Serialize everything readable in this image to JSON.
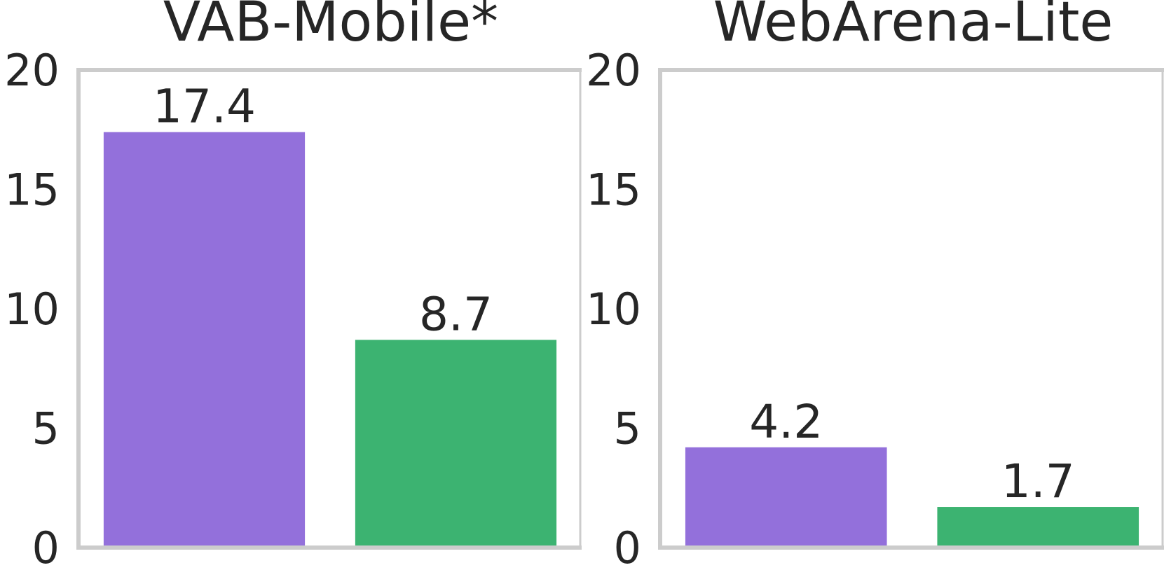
{
  "chart_data": [
    {
      "type": "bar",
      "title": "VAB-Mobile*",
      "categories": [
        "",
        ""
      ],
      "values": [
        17.4,
        8.7
      ],
      "data_labels": [
        "17.4",
        "8.7"
      ],
      "colors": [
        "#9370DB",
        "#3CB371"
      ],
      "ylim": [
        0,
        20
      ],
      "yticks": [
        0,
        5,
        10,
        15,
        20
      ],
      "ytick_labels": [
        "0",
        "5",
        "10",
        "15",
        "20"
      ],
      "grid": false,
      "xlabel": "",
      "ylabel": ""
    },
    {
      "type": "bar",
      "title": "WebArena-Lite",
      "categories": [
        "",
        ""
      ],
      "values": [
        4.2,
        1.7
      ],
      "data_labels": [
        "4.2",
        "1.7"
      ],
      "colors": [
        "#9370DB",
        "#3CB371"
      ],
      "ylim": [
        0,
        20
      ],
      "yticks": [
        0,
        5,
        10,
        15,
        20
      ],
      "ytick_labels": [
        "0",
        "5",
        "10",
        "15",
        "20"
      ],
      "grid": false,
      "xlabel": "",
      "ylabel": ""
    }
  ]
}
